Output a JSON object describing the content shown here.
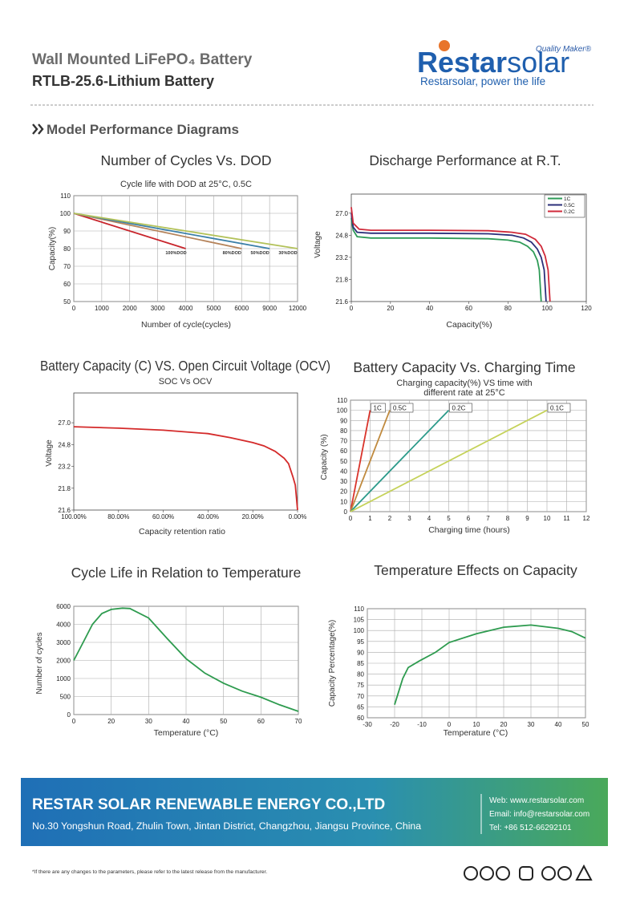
{
  "header": {
    "product": "Wall Mounted LiFePO₄ Battery",
    "model": "RTLB-25.6-Lithium Battery"
  },
  "logo": {
    "tagline": "Quality Maker®",
    "brand": "Restar",
    "brand_suffix": "solar",
    "slogan": "Restarsolar, power the life"
  },
  "section": {
    "title": "Model Performance Diagrams"
  },
  "chart_data": [
    {
      "type": "line",
      "title": "Number of Cycles Vs. DOD",
      "subtitle": "Cycle life with DOD at 25°C, 0.5C",
      "x_label": "Number of cycle(cycles)",
      "y_label": "Capacity(%)",
      "xlim": [
        0,
        12000
      ],
      "xticks": [
        0,
        1000,
        2000,
        3000,
        4000,
        5000,
        6000,
        9000,
        12000
      ],
      "ylim": [
        50,
        110
      ],
      "yticks": [
        50,
        60,
        70,
        80,
        90,
        100,
        110
      ],
      "grid": true,
      "legend": "line-end",
      "series": [
        {
          "name": "100%DOD",
          "color": "#c8252c",
          "x": [
            0,
            4000
          ],
          "values": [
            100,
            80
          ]
        },
        {
          "name": "80%DOD",
          "color": "#b5835a",
          "x": [
            0,
            6000
          ],
          "values": [
            100,
            80
          ]
        },
        {
          "name": "50%DOD",
          "color": "#3a7fa8",
          "x": [
            0,
            9000
          ],
          "values": [
            100,
            80
          ]
        },
        {
          "name": "30%DOD",
          "color": "#b3c25a",
          "x": [
            0,
            12000
          ],
          "values": [
            100,
            80
          ]
        }
      ]
    },
    {
      "type": "line",
      "title": "Discharge Performance at R.T.",
      "x_label": "Capacity(%)",
      "y_label": "Voltage",
      "xlim": [
        0,
        120
      ],
      "xticks": [
        0,
        20,
        40,
        60,
        80,
        100,
        120
      ],
      "ylim": [
        21.6,
        28.9
      ],
      "yticks": [
        21.6,
        21.8,
        23.2,
        24.8,
        {
          "value": 27,
          "label": "27.0"
        }
      ],
      "grid": false,
      "legend": "top-right",
      "series": [
        {
          "name": "1C",
          "color": "#2e9b57",
          "x": [
            0,
            1,
            3,
            10,
            40,
            70,
            80,
            86,
            90,
            93,
            95,
            96,
            97
          ],
          "values": [
            26.5,
            25.3,
            24.7,
            24.6,
            24.6,
            24.55,
            24.45,
            24.3,
            24.0,
            23.6,
            23.0,
            22.4,
            21.6
          ]
        },
        {
          "name": "0.5C",
          "color": "#2b2f7a",
          "x": [
            0,
            1,
            3,
            10,
            40,
            70,
            82,
            88,
            92,
            95,
            97,
            98.5,
            99.5
          ],
          "values": [
            27.0,
            25.6,
            25.1,
            25.0,
            25.0,
            24.95,
            24.8,
            24.6,
            24.3,
            23.8,
            23.2,
            22.4,
            21.6
          ]
        },
        {
          "name": "0.2C",
          "color": "#d02a3a",
          "x": [
            0,
            1,
            4,
            10,
            40,
            70,
            82,
            89,
            94,
            97,
            99,
            100.5,
            101.5
          ],
          "values": [
            27.6,
            26.0,
            25.4,
            25.3,
            25.3,
            25.25,
            25.1,
            24.9,
            24.5,
            24.0,
            23.3,
            22.4,
            21.6
          ]
        }
      ]
    },
    {
      "type": "line",
      "title": "Battery Capacity (C) VS. Open Circuit Voltage (OCV)",
      "subtitle": "SOC Vs OCV",
      "x_label": "Capacity retention ratio",
      "y_label": "Voltage",
      "xlim": [
        100,
        0
      ],
      "xticks": [
        {
          "value": 100,
          "label": "100.00%"
        },
        {
          "value": 80,
          "label": "80.00%"
        },
        {
          "value": 60,
          "label": "60.00%"
        },
        {
          "value": 40,
          "label": "40.00%"
        },
        {
          "value": 20,
          "label": "20.00%"
        },
        {
          "value": 0,
          "label": "0.00%"
        }
      ],
      "ylim": [
        21.6,
        30
      ],
      "yticks": [
        21.6,
        21.8,
        23.2,
        24.8,
        {
          "value": 27,
          "label": "27.0"
        }
      ],
      "grid": false,
      "color": "#d42a2a",
      "x": [
        100,
        80,
        60,
        40,
        30,
        20,
        15,
        10,
        6,
        4,
        2,
        1,
        0
      ],
      "values": [
        26.6,
        26.45,
        26.25,
        25.9,
        25.5,
        25.0,
        24.7,
        24.3,
        23.8,
        23.4,
        22.5,
        22.0,
        21.6
      ]
    },
    {
      "type": "line",
      "title": "Battery Capacity Vs. Charging Time",
      "subtitle": [
        "Charging capacity(%) VS time with",
        "different rate at 25°C"
      ],
      "x_label": "Charging time (hours)",
      "y_label": "Capacity (%)",
      "xlim": [
        0,
        12
      ],
      "xticks": [
        0,
        1,
        2,
        3,
        4,
        5,
        6,
        7,
        8,
        9,
        10,
        11,
        12
      ],
      "ylim": [
        0,
        110
      ],
      "yticks": [
        0,
        10,
        20,
        30,
        40,
        50,
        60,
        70,
        80,
        90,
        100,
        110
      ],
      "grid": true,
      "legend": "top-boxes",
      "series": [
        {
          "name": "1C",
          "color": "#d9342b",
          "x": [
            0,
            1
          ],
          "values": [
            0,
            100
          ]
        },
        {
          "name": "0.5C",
          "color": "#c08a3e",
          "x": [
            0,
            2
          ],
          "values": [
            0,
            100
          ]
        },
        {
          "name": "0.2C",
          "color": "#2b9a8a",
          "x": [
            0,
            5
          ],
          "values": [
            0,
            100
          ]
        },
        {
          "name": "0.1C",
          "color": "#c5d25a",
          "x": [
            0,
            10
          ],
          "values": [
            0,
            100
          ]
        }
      ]
    },
    {
      "type": "line",
      "title": "Cycle Life in Relation to Temperature",
      "x_label": "Temperature (°C)",
      "y_label": "Number of cycles",
      "xlim": [
        0,
        70
      ],
      "xticks": [
        0,
        20,
        30,
        40,
        50,
        60,
        70
      ],
      "ylim": [
        0,
        6000
      ],
      "yticks": [
        0,
        500,
        1000,
        2000,
        3000,
        4000,
        6000
      ],
      "grid": true,
      "color": "#2e9b4f",
      "x": [
        0,
        5,
        10,
        15,
        20,
        23,
        25,
        30,
        35,
        40,
        45,
        50,
        55,
        60,
        65,
        70
      ],
      "values": [
        2000,
        3000,
        4000,
        5200,
        5650,
        5800,
        5750,
        4700,
        3200,
        2100,
        1300,
        870,
        650,
        480,
        270,
        90
      ]
    },
    {
      "type": "line",
      "title": "Temperature Effects on Capacity",
      "x_label": "Temperature (°C)",
      "y_label": "Capacity Percentage(%)",
      "xlim": [
        -30,
        50
      ],
      "xticks": [
        -30,
        -20,
        -10,
        0,
        10,
        20,
        30,
        40,
        50
      ],
      "ylim": [
        60,
        110
      ],
      "yticks": [
        60,
        65,
        70,
        75,
        80,
        85,
        90,
        95,
        100,
        105,
        110
      ],
      "grid": true,
      "color": "#2e9b4f",
      "x": [
        -20,
        -19,
        -17,
        -15,
        -11,
        -5,
        0,
        10,
        20,
        30,
        40,
        45,
        50
      ],
      "values": [
        66,
        70,
        78,
        83,
        86,
        90,
        94.5,
        98.5,
        101.5,
        102.5,
        101,
        99.5,
        96.5
      ]
    }
  ],
  "footer": {
    "company": "RESTAR SOLAR RENEWABLE ENERGY CO.,LTD",
    "address": "No.30 Yongshun Road, Zhulin Town, Jintan District, Changzhou, Jiangsu Province, China",
    "web": "Web: www.restarsolar.com",
    "email": "Email: info@restarsolar.com",
    "tel": "Tel: +86 512-66292101",
    "note": "*If there are any changes to the parameters, please refer to the latest release from the manufacturer."
  }
}
